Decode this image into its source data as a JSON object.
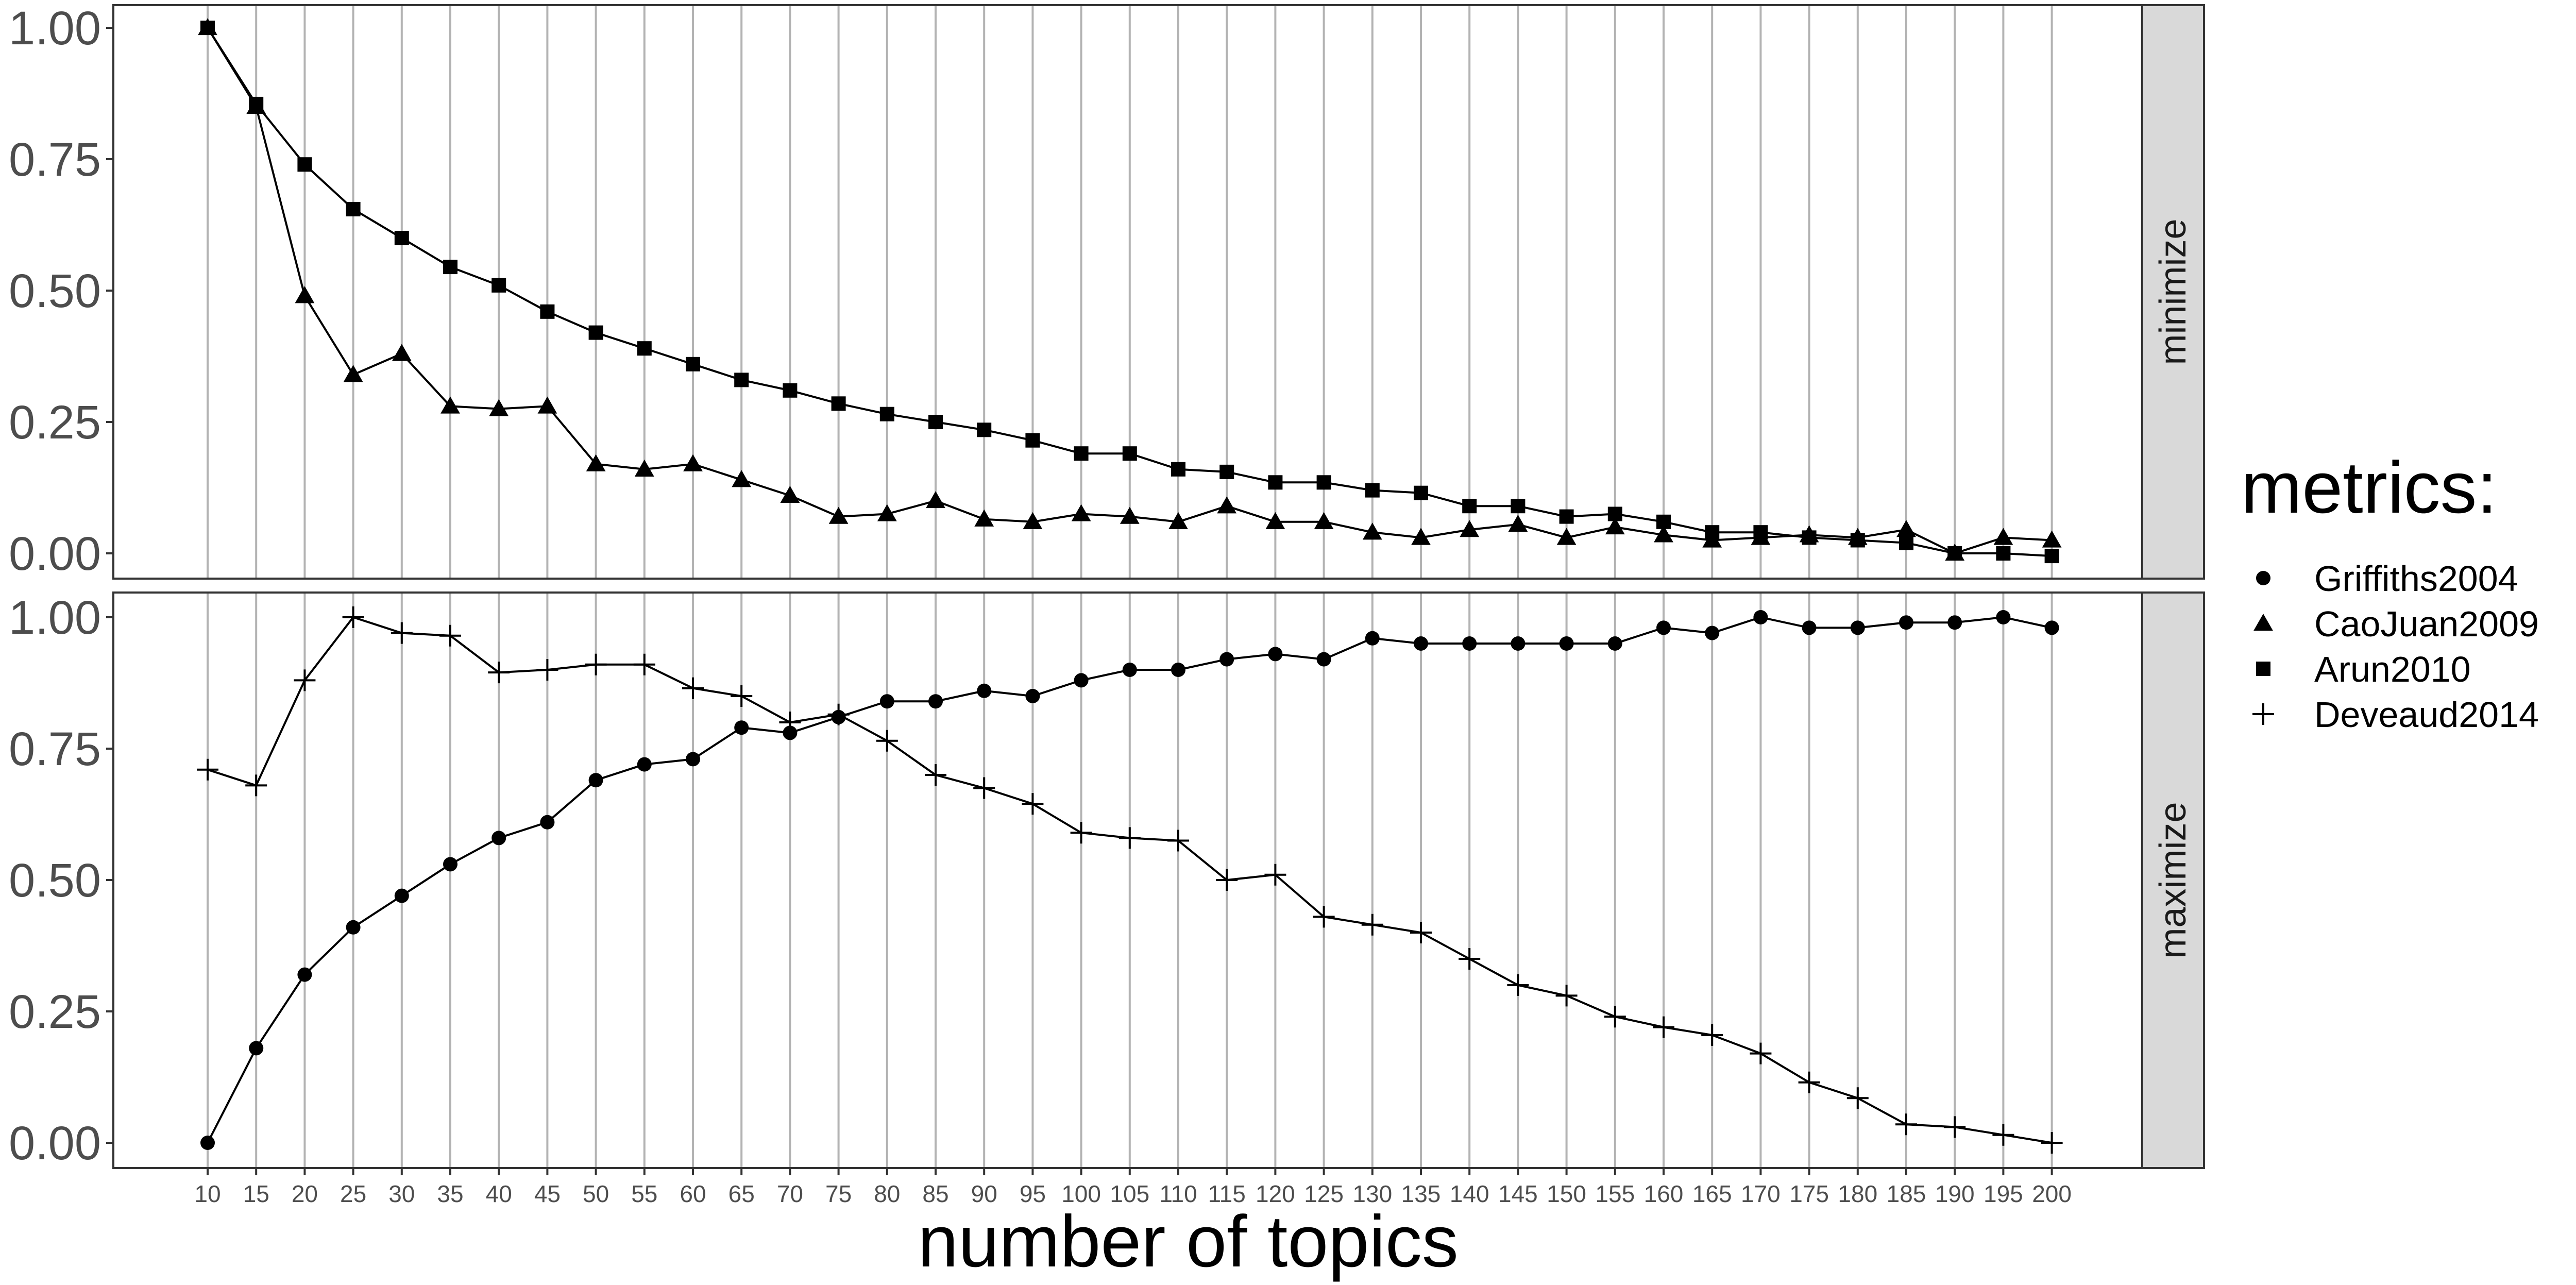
{
  "chart_data": {
    "type": "line",
    "xlabel": "number of topics",
    "legend": {
      "title": "metrics:",
      "placement": "right",
      "items": [
        {
          "label": "Griffiths2004",
          "shape": "circle"
        },
        {
          "label": "CaoJuan2009",
          "shape": "triangle"
        },
        {
          "label": "Arun2010",
          "shape": "square"
        },
        {
          "label": "Deveaud2014",
          "shape": "plus"
        }
      ]
    },
    "x": [
      10,
      15,
      20,
      25,
      30,
      35,
      40,
      45,
      50,
      55,
      60,
      65,
      70,
      75,
      80,
      85,
      90,
      95,
      100,
      105,
      110,
      115,
      120,
      125,
      130,
      135,
      140,
      145,
      150,
      155,
      160,
      165,
      170,
      175,
      180,
      185,
      190,
      195,
      200
    ],
    "ylim": [
      0,
      1
    ],
    "yticks": [
      "0.00",
      "0.25",
      "0.50",
      "0.75",
      "1.00"
    ],
    "grid": "vertical lines at each x",
    "panels": [
      {
        "strip": "minimize",
        "series": [
          {
            "name": "CaoJuan2009",
            "shape": "triangle",
            "values": [
              1.0,
              0.85,
              0.49,
              0.34,
              0.38,
              0.28,
              0.275,
              0.28,
              0.17,
              0.16,
              0.17,
              0.14,
              0.11,
              0.07,
              0.075,
              0.1,
              0.065,
              0.06,
              0.075,
              0.07,
              0.06,
              0.09,
              0.06,
              0.06,
              0.04,
              0.03,
              0.045,
              0.055,
              0.03,
              0.05,
              0.035,
              0.025,
              0.03,
              0.035,
              0.03,
              0.045,
              0.0,
              0.03,
              0.025
            ]
          },
          {
            "name": "Arun2010",
            "shape": "square",
            "values": [
              1.0,
              0.855,
              0.74,
              0.655,
              0.6,
              0.545,
              0.51,
              0.46,
              0.42,
              0.39,
              0.36,
              0.33,
              0.31,
              0.285,
              0.265,
              0.25,
              0.235,
              0.215,
              0.19,
              0.19,
              0.16,
              0.155,
              0.135,
              0.135,
              0.12,
              0.115,
              0.09,
              0.09,
              0.07,
              0.075,
              0.06,
              0.04,
              0.04,
              0.03,
              0.025,
              0.02,
              0.0,
              0.0,
              -0.005
            ]
          }
        ]
      },
      {
        "strip": "maximize",
        "series": [
          {
            "name": "Griffiths2004",
            "shape": "circle",
            "values": [
              0.0,
              0.18,
              0.32,
              0.41,
              0.47,
              0.53,
              0.58,
              0.61,
              0.69,
              0.72,
              0.73,
              0.79,
              0.78,
              0.81,
              0.84,
              0.84,
              0.86,
              0.85,
              0.88,
              0.9,
              0.9,
              0.92,
              0.93,
              0.92,
              0.96,
              0.95,
              0.95,
              0.95,
              0.95,
              0.95,
              0.98,
              0.97,
              1.0,
              0.98,
              0.98,
              0.99,
              0.99,
              1.0,
              0.98
            ]
          },
          {
            "name": "Deveaud2014",
            "shape": "plus",
            "values": [
              0.71,
              0.68,
              0.88,
              1.0,
              0.97,
              0.965,
              0.895,
              0.9,
              0.91,
              0.91,
              0.865,
              0.85,
              0.8,
              0.815,
              0.765,
              0.7,
              0.675,
              0.645,
              0.59,
              0.58,
              0.575,
              0.5,
              0.51,
              0.43,
              0.415,
              0.4,
              0.35,
              0.3,
              0.28,
              0.24,
              0.22,
              0.205,
              0.17,
              0.115,
              0.085,
              0.035,
              0.03,
              0.015,
              0.0
            ]
          }
        ]
      }
    ]
  }
}
